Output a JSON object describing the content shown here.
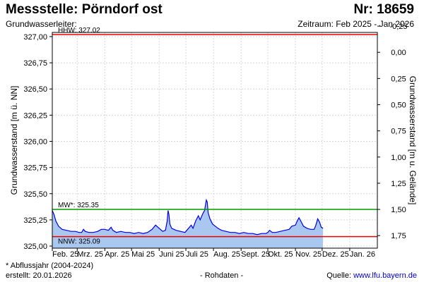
{
  "header": {
    "title": "Messstelle: Pörndorf ost",
    "number": "Nr: 18659",
    "aquifer_label": "Grundwasserleiter:",
    "period": "Zeitraum: Feb 2025 - Jan 2026"
  },
  "footer": {
    "footnote": "* Abflussjahr (2004-2024)",
    "created": "erstellt:  20.01.2026",
    "raw_data": "- Rohdaten -",
    "source_label": "Quelle: ",
    "source_url": "www.lfu.bayern.de"
  },
  "colors": {
    "area_fill": "#aac8ef",
    "series_line": "#0000ee",
    "hhw": "#ee0000",
    "mw": "#009900",
    "nnw": "#ee0000",
    "grid": "#d8d8d8"
  },
  "chart_data": {
    "type": "area",
    "ylabel_left": "Grundwasserstand [m ü. NN]",
    "ylabel_right": "Grundwasserstand [m u. Gelände]",
    "ylim": [
      324.98,
      327.04
    ],
    "xlim": [
      "2025-02-01",
      "2026-02-01"
    ],
    "grid": true,
    "left_ticks": [
      {
        "value": 327.0,
        "label": "327,00"
      },
      {
        "value": 326.75,
        "label": "326,75"
      },
      {
        "value": 326.5,
        "label": "326,50"
      },
      {
        "value": 326.25,
        "label": "326,25"
      },
      {
        "value": 326.0,
        "label": "326,00"
      },
      {
        "value": 325.75,
        "label": "325,75"
      },
      {
        "value": 325.5,
        "label": "325,50"
      },
      {
        "value": 325.25,
        "label": "325,25"
      },
      {
        "value": 325.0,
        "label": "325,00"
      }
    ],
    "right_ticks": [
      {
        "value": 327.1,
        "label": "-0,25"
      },
      {
        "value": 326.85,
        "label": "0,00"
      },
      {
        "value": 326.6,
        "label": "0,25"
      },
      {
        "value": 326.35,
        "label": "0,50"
      },
      {
        "value": 326.1,
        "label": "0,75"
      },
      {
        "value": 325.85,
        "label": "1,00"
      },
      {
        "value": 325.6,
        "label": "1,25"
      },
      {
        "value": 325.35,
        "label": "1,50"
      },
      {
        "value": 325.1,
        "label": "1,75"
      }
    ],
    "x_ticks": [
      {
        "date": "2025-02-01",
        "label": "Feb. 25"
      },
      {
        "date": "2025-03-01",
        "label": "Mrz. 25"
      },
      {
        "date": "2025-04-01",
        "label": "Apr. 25"
      },
      {
        "date": "2025-05-01",
        "label": "Mai 25"
      },
      {
        "date": "2025-06-01",
        "label": "Juni 25"
      },
      {
        "date": "2025-07-01",
        "label": "Juli 25"
      },
      {
        "date": "2025-08-01",
        "label": "Aug. 25"
      },
      {
        "date": "2025-09-01",
        "label": "Sept. 25"
      },
      {
        "date": "2025-10-01",
        "label": "Okt. 25"
      },
      {
        "date": "2025-11-01",
        "label": "Nov. 25"
      },
      {
        "date": "2025-12-01",
        "label": "Dez. 25"
      },
      {
        "date": "2026-01-01",
        "label": "Jan. 26"
      }
    ],
    "reference_lines": [
      {
        "name": "HHW",
        "label": "HHW: 327.02",
        "value": 327.02
      },
      {
        "name": "MW",
        "label": "MW*: 325.35",
        "value": 325.35
      },
      {
        "name": "NNW",
        "label": "NNW: 325.09",
        "value": 325.09
      }
    ],
    "series": [
      {
        "values": [
          [
            "2025-02-01",
            325.34
          ],
          [
            "2025-02-03",
            325.3
          ],
          [
            "2025-02-05",
            325.24
          ],
          [
            "2025-02-08",
            325.19
          ],
          [
            "2025-02-12",
            325.16
          ],
          [
            "2025-02-17",
            325.15
          ],
          [
            "2025-02-22",
            325.14
          ],
          [
            "2025-02-27",
            325.14
          ],
          [
            "2025-03-03",
            325.13
          ],
          [
            "2025-03-06",
            325.13
          ],
          [
            "2025-03-08",
            325.16
          ],
          [
            "2025-03-10",
            325.14
          ],
          [
            "2025-03-14",
            325.13
          ],
          [
            "2025-03-19",
            325.13
          ],
          [
            "2025-03-24",
            325.14
          ],
          [
            "2025-03-28",
            325.16
          ],
          [
            "2025-04-01",
            325.16
          ],
          [
            "2025-04-05",
            325.15
          ],
          [
            "2025-04-08",
            325.18
          ],
          [
            "2025-04-10",
            325.15
          ],
          [
            "2025-04-14",
            325.13
          ],
          [
            "2025-04-19",
            325.14
          ],
          [
            "2025-04-24",
            325.13
          ],
          [
            "2025-04-29",
            325.13
          ],
          [
            "2025-05-04",
            325.12
          ],
          [
            "2025-05-09",
            325.13
          ],
          [
            "2025-05-14",
            325.12
          ],
          [
            "2025-05-19",
            325.13
          ],
          [
            "2025-05-24",
            325.16
          ],
          [
            "2025-05-28",
            325.2
          ],
          [
            "2025-06-01",
            325.17
          ],
          [
            "2025-06-05",
            325.14
          ],
          [
            "2025-06-08",
            325.15
          ],
          [
            "2025-06-10",
            325.24
          ],
          [
            "2025-06-11",
            325.34
          ],
          [
            "2025-06-12",
            325.3
          ],
          [
            "2025-06-13",
            325.21
          ],
          [
            "2025-06-15",
            325.17
          ],
          [
            "2025-06-20",
            325.15
          ],
          [
            "2025-06-25",
            325.14
          ],
          [
            "2025-06-30",
            325.13
          ],
          [
            "2025-07-04",
            325.17
          ],
          [
            "2025-07-07",
            325.2
          ],
          [
            "2025-07-09",
            325.17
          ],
          [
            "2025-07-12",
            325.24
          ],
          [
            "2025-07-15",
            325.29
          ],
          [
            "2025-07-17",
            325.25
          ],
          [
            "2025-07-20",
            325.31
          ],
          [
            "2025-07-22",
            325.34
          ],
          [
            "2025-07-24",
            325.44
          ],
          [
            "2025-07-25",
            325.42
          ],
          [
            "2025-07-26",
            325.32
          ],
          [
            "2025-07-28",
            325.26
          ],
          [
            "2025-07-31",
            325.21
          ],
          [
            "2025-08-03",
            325.19
          ],
          [
            "2025-08-06",
            325.17
          ],
          [
            "2025-08-10",
            325.15
          ],
          [
            "2025-08-15",
            325.14
          ],
          [
            "2025-08-20",
            325.13
          ],
          [
            "2025-08-25",
            325.13
          ],
          [
            "2025-08-30",
            325.12
          ],
          [
            "2025-09-04",
            325.13
          ],
          [
            "2025-09-09",
            325.12
          ],
          [
            "2025-09-14",
            325.12
          ],
          [
            "2025-09-19",
            325.11
          ],
          [
            "2025-09-24",
            325.12
          ],
          [
            "2025-09-29",
            325.12
          ],
          [
            "2025-10-01",
            325.13
          ],
          [
            "2025-10-03",
            325.15
          ],
          [
            "2025-10-06",
            325.13
          ],
          [
            "2025-10-10",
            325.13
          ],
          [
            "2025-10-15",
            325.14
          ],
          [
            "2025-10-20",
            325.15
          ],
          [
            "2025-10-25",
            325.16
          ],
          [
            "2025-10-28",
            325.19
          ],
          [
            "2025-11-01",
            325.2
          ],
          [
            "2025-11-03",
            325.24
          ],
          [
            "2025-11-05",
            325.27
          ],
          [
            "2025-11-07",
            325.24
          ],
          [
            "2025-11-10",
            325.19
          ],
          [
            "2025-11-14",
            325.17
          ],
          [
            "2025-11-18",
            325.16
          ],
          [
            "2025-11-22",
            325.16
          ],
          [
            "2025-11-24",
            325.2
          ],
          [
            "2025-11-26",
            325.26
          ],
          [
            "2025-11-28",
            325.23
          ],
          [
            "2025-11-30",
            325.18
          ],
          [
            "2025-12-02",
            325.17
          ]
        ]
      }
    ]
  }
}
